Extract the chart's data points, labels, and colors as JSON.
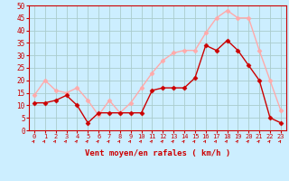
{
  "x": [
    0,
    1,
    2,
    3,
    4,
    5,
    6,
    7,
    8,
    9,
    10,
    11,
    12,
    13,
    14,
    15,
    16,
    17,
    18,
    19,
    20,
    21,
    22,
    23
  ],
  "wind_avg": [
    11,
    11,
    12,
    14,
    10,
    3,
    7,
    7,
    7,
    7,
    7,
    16,
    17,
    17,
    17,
    21,
    34,
    32,
    36,
    32,
    26,
    20,
    5,
    3
  ],
  "wind_gust": [
    14,
    20,
    16,
    15,
    17,
    12,
    6,
    12,
    7,
    11,
    17,
    23,
    28,
    31,
    32,
    32,
    39,
    45,
    48,
    45,
    45,
    32,
    20,
    8
  ],
  "avg_color": "#cc0000",
  "gust_color": "#ffaaaa",
  "bg_color": "#cceeff",
  "grid_color": "#aacccc",
  "axis_color": "#cc0000",
  "xlabel": "Vent moyen/en rafales ( km/h )",
  "ylim": [
    0,
    50
  ],
  "yticks": [
    0,
    5,
    10,
    15,
    20,
    25,
    30,
    35,
    40,
    45,
    50
  ]
}
